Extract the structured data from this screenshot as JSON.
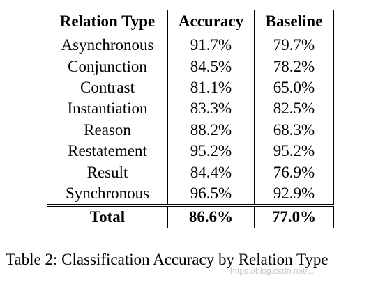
{
  "table": {
    "headers": [
      "Relation Type",
      "Accuracy",
      "Baseline"
    ],
    "rows": [
      [
        "Asynchronous",
        "91.7%",
        "79.7%"
      ],
      [
        "Conjunction",
        "84.5%",
        "78.2%"
      ],
      [
        "Contrast",
        "81.1%",
        "65.0%"
      ],
      [
        "Instantiation",
        "83.3%",
        "82.5%"
      ],
      [
        "Reason",
        "88.2%",
        "68.3%"
      ],
      [
        "Restatement",
        "95.2%",
        "95.2%"
      ],
      [
        "Result",
        "84.4%",
        "76.9%"
      ],
      [
        "Synchronous",
        "96.5%",
        "92.9%"
      ]
    ],
    "total": [
      "Total",
      "86.6%",
      "77.0%"
    ]
  },
  "caption": "Table 2: Classification Accuracy by Relation Type",
  "watermark": "https://blog.csdn.net/..."
}
